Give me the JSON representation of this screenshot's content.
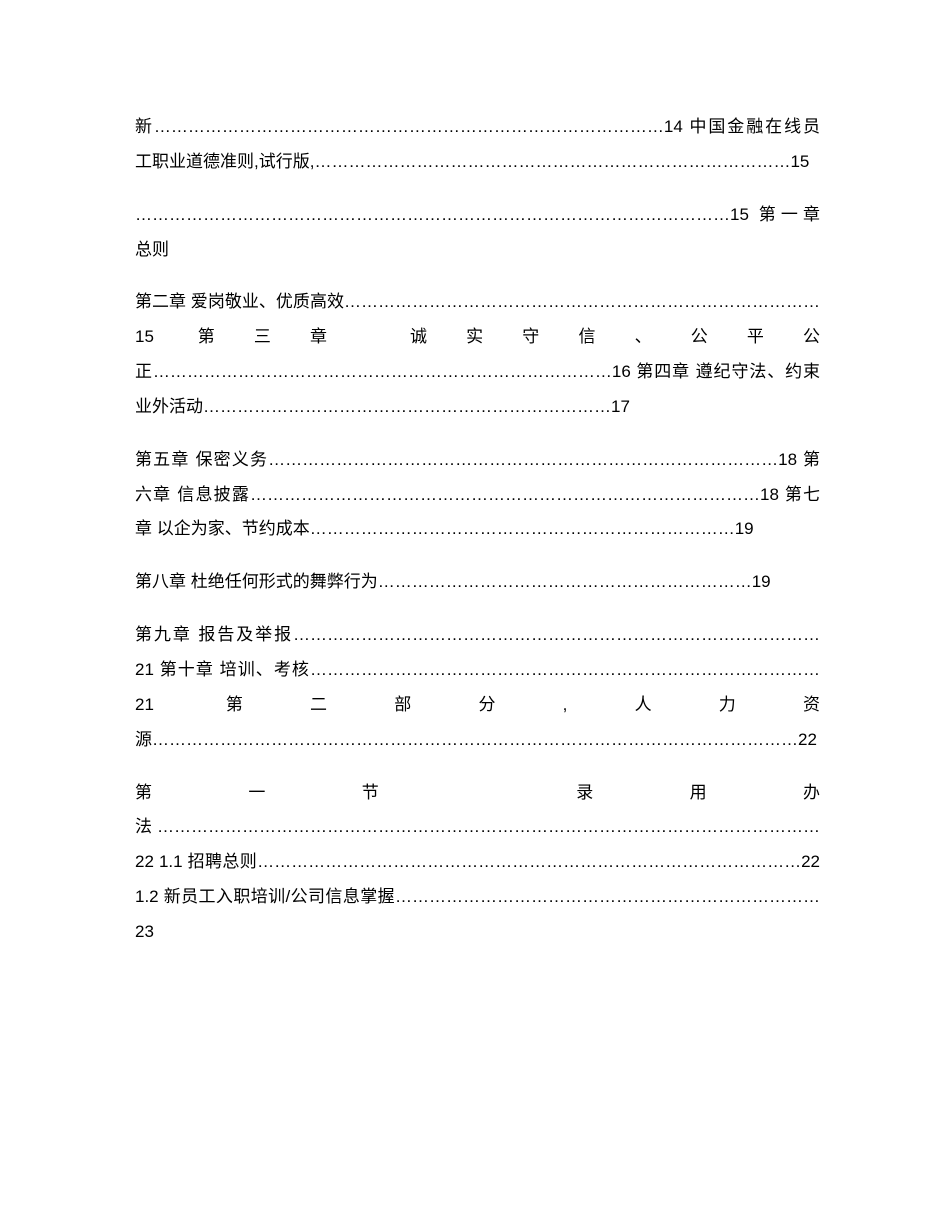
{
  "p1": "新………………………………………………………………………………14 中国金融在线员工职业道德准则,试行版,…………………………………………………………………………15",
  "p2": "……………………………………………………………………………………………15 第一章 总则",
  "p3": "第二章 爱岗敬业、优质高效…………………………………………………………………………15 第三章 诚实守信、公平公正………………………………………………………………………16 第四章 遵纪守法、约束业外活动………………………………………………………………17",
  "p4": "第五章 保密义务………………………………………………………………………………18 第六章 信息披露………………………………………………………………………………18 第七章 以企为家、节约成本…………………………………………………………………19",
  "p5": "第八章 杜绝任何形式的舞弊行为…………………………………………………………19",
  "p6": "第九章 报告及举报…………………………………………………………………………………21 第十章 培训、考核………………………………………………………………………………21 第二部分,人力资源……………………………………………………………………………………………………22",
  "p7": "第一节 录用办法………………………………………………………………………………………………………22 1.1 招聘总则……………………………………………………………………………………22 1.2 新员工入职培训/公司信息掌握…………………………………………………………………23"
}
